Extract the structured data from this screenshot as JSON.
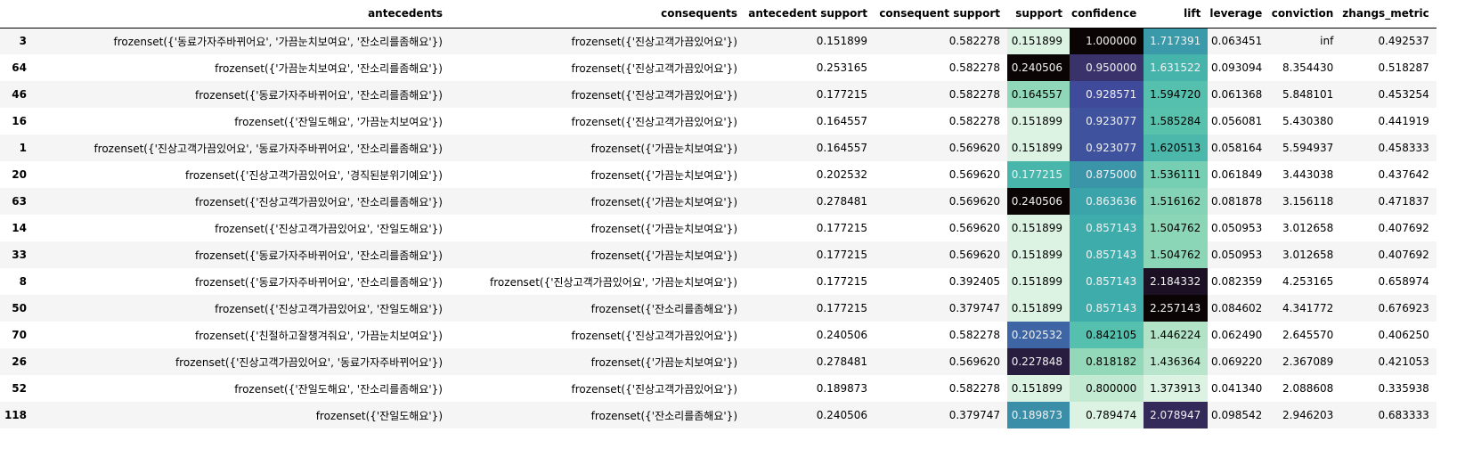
{
  "columns": [
    "",
    "antecedents",
    "consequents",
    "antecedent support",
    "consequent support",
    "support",
    "confidence",
    "lift",
    "leverage",
    "conviction",
    "zhangs_metric"
  ],
  "rows": [
    [
      "3",
      "frozenset({'동료가자주바뀌어요', '가끔눈치보여요', '잔소리를좀해요'})",
      "frozenset({'진상고객가끔있어요'})",
      "0.151899",
      "0.582278",
      "0.151899",
      "1.000000",
      "1.717391",
      "0.063451",
      "inf",
      "0.492537"
    ],
    [
      "64",
      "frozenset({'가끔눈치보여요', '잔소리를좀해요'})",
      "frozenset({'진상고객가끔있어요'})",
      "0.253165",
      "0.582278",
      "0.240506",
      "0.950000",
      "1.631522",
      "0.093094",
      "8.354430",
      "0.518287"
    ],
    [
      "46",
      "frozenset({'동료가자주바뀌어요', '잔소리를좀해요'})",
      "frozenset({'진상고객가끔있어요'})",
      "0.177215",
      "0.582278",
      "0.164557",
      "0.928571",
      "1.594720",
      "0.061368",
      "5.848101",
      "0.453254"
    ],
    [
      "16",
      "frozenset({'잔일도해요', '가끔눈치보여요'})",
      "frozenset({'진상고객가끔있어요'})",
      "0.164557",
      "0.582278",
      "0.151899",
      "0.923077",
      "1.585284",
      "0.056081",
      "5.430380",
      "0.441919"
    ],
    [
      "1",
      "frozenset({'진상고객가끔있어요', '동료가자주바뀌어요', '잔소리를좀해요'})",
      "frozenset({'가끔눈치보여요'})",
      "0.164557",
      "0.569620",
      "0.151899",
      "0.923077",
      "1.620513",
      "0.058164",
      "5.594937",
      "0.458333"
    ],
    [
      "20",
      "frozenset({'진상고객가끔있어요', '경직된분위기예요'})",
      "frozenset({'가끔눈치보여요'})",
      "0.202532",
      "0.569620",
      "0.177215",
      "0.875000",
      "1.536111",
      "0.061849",
      "3.443038",
      "0.437642"
    ],
    [
      "63",
      "frozenset({'진상고객가끔있어요', '잔소리를좀해요'})",
      "frozenset({'가끔눈치보여요'})",
      "0.278481",
      "0.569620",
      "0.240506",
      "0.863636",
      "1.516162",
      "0.081878",
      "3.156118",
      "0.471837"
    ],
    [
      "14",
      "frozenset({'진상고객가끔있어요', '잔일도해요'})",
      "frozenset({'가끔눈치보여요'})",
      "0.177215",
      "0.569620",
      "0.151899",
      "0.857143",
      "1.504762",
      "0.050953",
      "3.012658",
      "0.407692"
    ],
    [
      "33",
      "frozenset({'동료가자주바뀌어요', '잔소리를좀해요'})",
      "frozenset({'가끔눈치보여요'})",
      "0.177215",
      "0.569620",
      "0.151899",
      "0.857143",
      "1.504762",
      "0.050953",
      "3.012658",
      "0.407692"
    ],
    [
      "8",
      "frozenset({'동료가자주바뀌어요', '잔소리를좀해요'})",
      "frozenset({'진상고객가끔있어요', '가끔눈치보여요'})",
      "0.177215",
      "0.392405",
      "0.151899",
      "0.857143",
      "2.184332",
      "0.082359",
      "4.253165",
      "0.658974"
    ],
    [
      "50",
      "frozenset({'진상고객가끔있어요', '잔일도해요'})",
      "frozenset({'잔소리를좀해요'})",
      "0.177215",
      "0.379747",
      "0.151899",
      "0.857143",
      "2.257143",
      "0.084602",
      "4.341772",
      "0.676923"
    ],
    [
      "70",
      "frozenset({'친절하고잘챙겨줘요', '가끔눈치보여요'})",
      "frozenset({'진상고객가끔있어요'})",
      "0.240506",
      "0.582278",
      "0.202532",
      "0.842105",
      "1.446224",
      "0.062490",
      "2.645570",
      "0.406250"
    ],
    [
      "26",
      "frozenset({'진상고객가끔있어요', '동료가자주바뀌어요'})",
      "frozenset({'가끔눈치보여요'})",
      "0.278481",
      "0.569620",
      "0.227848",
      "0.818182",
      "1.436364",
      "0.069220",
      "2.367089",
      "0.421053"
    ],
    [
      "52",
      "frozenset({'잔일도해요', '잔소리를좀해요'})",
      "frozenset({'진상고객가끔있어요'})",
      "0.189873",
      "0.582278",
      "0.151899",
      "0.800000",
      "1.373913",
      "0.041340",
      "2.088608",
      "0.335938"
    ],
    [
      "118",
      "frozenset({'잔일도해요'})",
      "frozenset({'잔소리를좀해요'})",
      "0.240506",
      "0.379747",
      "0.189873",
      "0.789474",
      "2.078947",
      "0.098542",
      "2.946203",
      "0.683333"
    ]
  ],
  "colormap": {
    "name": "mako_r",
    "stops": [
      "#dcf3e3",
      "#a3ddbd",
      "#5ec7ad",
      "#3aa9ab",
      "#3a8aa8",
      "#3e6aa6",
      "#40489a",
      "#382e63",
      "#22162f",
      "#0b0405"
    ]
  },
  "gradient_columns": [
    "support",
    "confidence",
    "lift"
  ]
}
